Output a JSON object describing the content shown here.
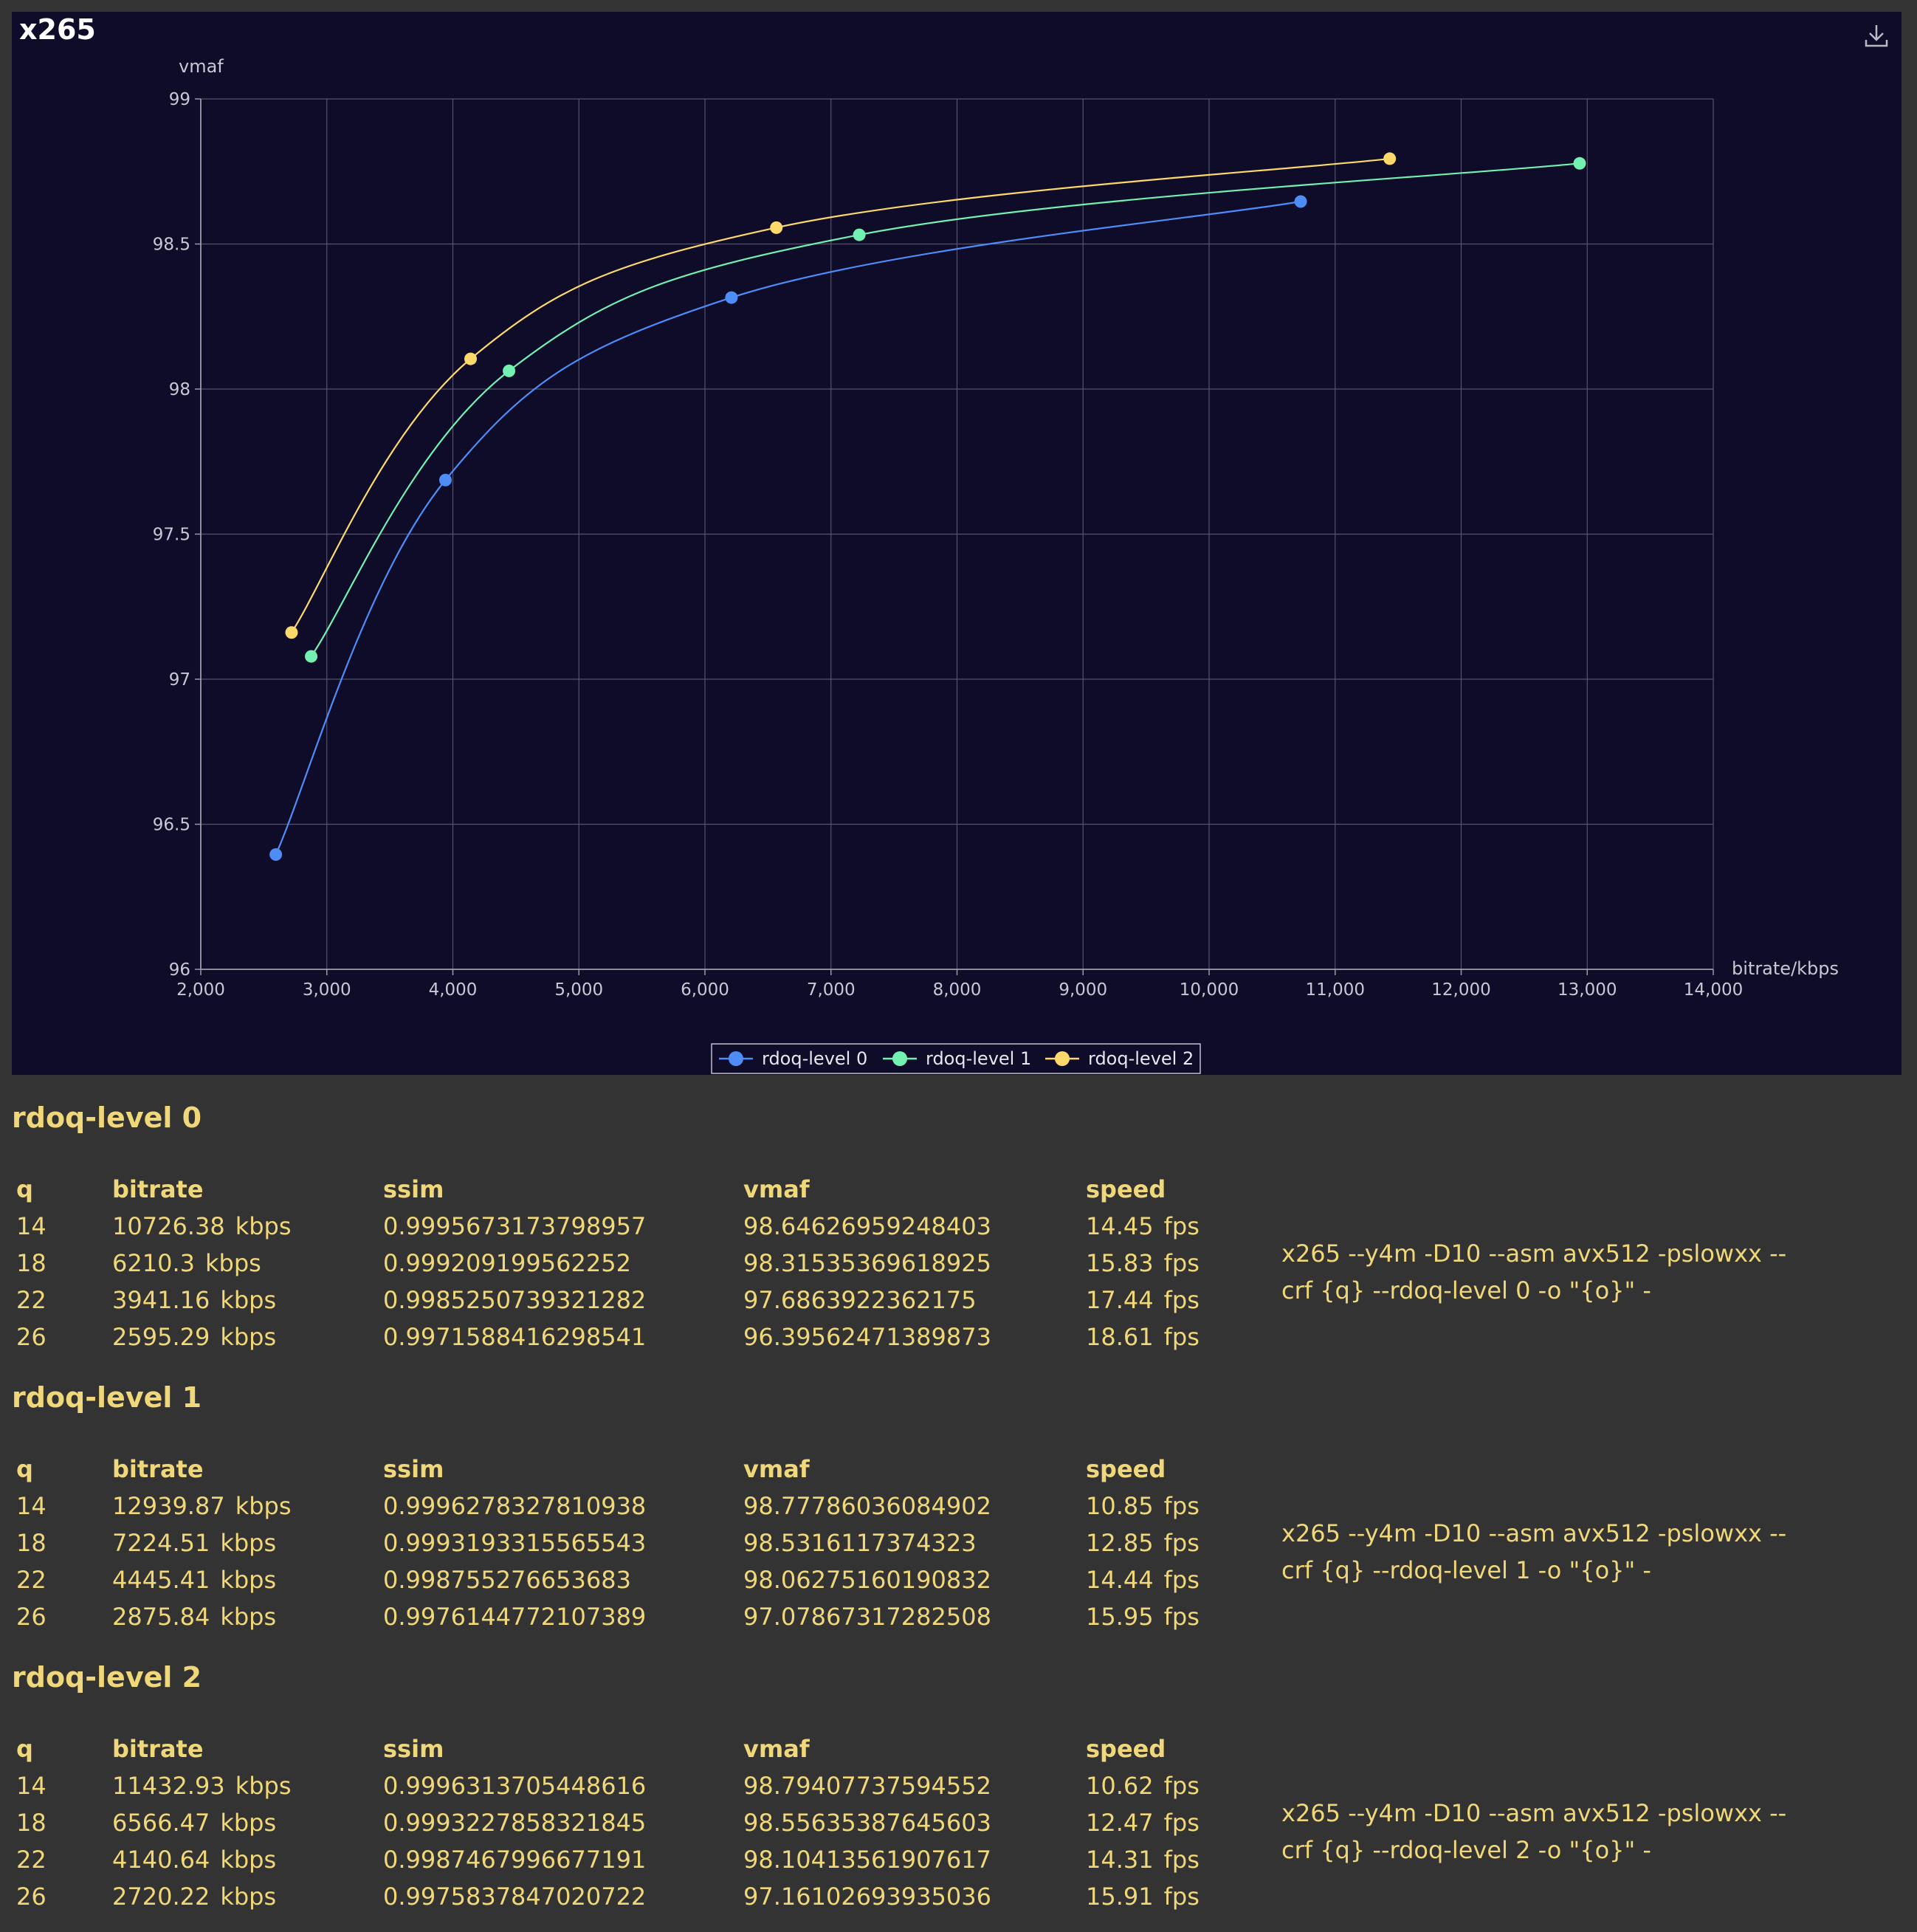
{
  "page": {
    "title": "x265"
  },
  "chart_data": {
    "type": "line",
    "title": "x265",
    "xlabel": "bitrate/kbps",
    "ylabel": "vmaf",
    "xlim": [
      2000,
      14000
    ],
    "ylim": [
      96,
      99
    ],
    "x_ticks": [
      "2,000",
      "3,000",
      "4,000",
      "5,000",
      "6,000",
      "7,000",
      "8,000",
      "9,000",
      "10,000",
      "11,000",
      "12,000",
      "13,000",
      "14,000"
    ],
    "y_ticks": [
      "96",
      "96.5",
      "97",
      "97.5",
      "98",
      "98.5",
      "99"
    ],
    "grid": true,
    "legend_position": "bottom-center",
    "series": [
      {
        "name": "rdoq-level 0",
        "color": "#4e8cf7",
        "points": [
          [
            2595.29,
            96.39562471389873
          ],
          [
            3941.16,
            97.6863922362175
          ],
          [
            6210.3,
            98.31535369618925
          ],
          [
            10726.38,
            98.64626959248403
          ]
        ]
      },
      {
        "name": "rdoq-level 1",
        "color": "#72f1b1",
        "points": [
          [
            2875.84,
            97.07867317282508
          ],
          [
            4445.41,
            98.06275160190832
          ],
          [
            7224.51,
            98.5316117374323
          ],
          [
            12939.87,
            98.77786036084902
          ]
        ]
      },
      {
        "name": "rdoq-level 2",
        "color": "#fcd96a",
        "points": [
          [
            2720.22,
            97.16102693935036
          ],
          [
            4140.64,
            98.10413561907617
          ],
          [
            6566.47,
            98.55635387645603
          ],
          [
            11432.93,
            98.79407737594552
          ]
        ]
      }
    ]
  },
  "table_headers": {
    "q": "q",
    "bitrate": "bitrate",
    "ssim": "ssim",
    "vmaf": "vmaf",
    "speed": "speed"
  },
  "units": {
    "bitrate": "kbps",
    "speed": "fps"
  },
  "sections": [
    {
      "title": "rdoq-level 0",
      "rows": [
        {
          "q": "14",
          "bitrate": "10726.38",
          "ssim": "0.9995673173798957",
          "vmaf": "98.64626959248403",
          "speed": "14.45"
        },
        {
          "q": "18",
          "bitrate": "6210.3",
          "ssim": "0.999209199562252",
          "vmaf": "98.31535369618925",
          "speed": "15.83"
        },
        {
          "q": "22",
          "bitrate": "3941.16",
          "ssim": "0.9985250739321282",
          "vmaf": "97.6863922362175",
          "speed": "17.44"
        },
        {
          "q": "26",
          "bitrate": "2595.29",
          "ssim": "0.9971588416298541",
          "vmaf": "96.39562471389873",
          "speed": "18.61"
        }
      ],
      "command": [
        "x265 --y4m -D10 --asm avx512 -pslowxx --",
        "crf {q} --rdoq-level 0 -o \"{o}\" -"
      ]
    },
    {
      "title": "rdoq-level 1",
      "rows": [
        {
          "q": "14",
          "bitrate": "12939.87",
          "ssim": "0.9996278327810938",
          "vmaf": "98.77786036084902",
          "speed": "10.85"
        },
        {
          "q": "18",
          "bitrate": "7224.51",
          "ssim": "0.9993193315565543",
          "vmaf": "98.5316117374323",
          "speed": "12.85"
        },
        {
          "q": "22",
          "bitrate": "4445.41",
          "ssim": "0.998755276653683",
          "vmaf": "98.06275160190832",
          "speed": "14.44"
        },
        {
          "q": "26",
          "bitrate": "2875.84",
          "ssim": "0.9976144772107389",
          "vmaf": "97.07867317282508",
          "speed": "15.95"
        }
      ],
      "command": [
        "x265 --y4m -D10 --asm avx512 -pslowxx --",
        "crf {q} --rdoq-level 1 -o \"{o}\" -"
      ]
    },
    {
      "title": "rdoq-level 2",
      "rows": [
        {
          "q": "14",
          "bitrate": "11432.93",
          "ssim": "0.9996313705448616",
          "vmaf": "98.79407737594552",
          "speed": "10.62"
        },
        {
          "q": "18",
          "bitrate": "6566.47",
          "ssim": "0.9993227858321845",
          "vmaf": "98.55635387645603",
          "speed": "12.47"
        },
        {
          "q": "22",
          "bitrate": "4140.64",
          "ssim": "0.9987467996677191",
          "vmaf": "98.10413561907617",
          "speed": "14.31"
        },
        {
          "q": "26",
          "bitrate": "2720.22",
          "ssim": "0.9975837847020722",
          "vmaf": "97.16102693935036",
          "speed": "15.91"
        }
      ],
      "command": [
        "x265 --y4m -D10 --asm avx512 -pslowxx --",
        "crf {q} --rdoq-level 2 -o \"{o}\" -"
      ]
    }
  ]
}
